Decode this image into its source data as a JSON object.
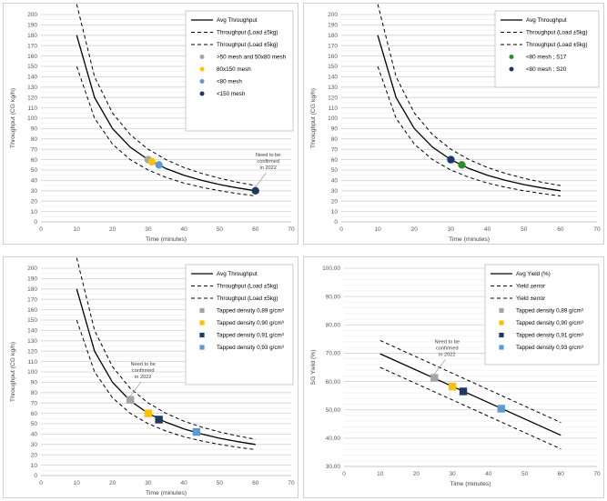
{
  "chart_data": [
    {
      "type": "line",
      "xlabel": "Time (minutes)",
      "ylabel": "Throughput (CG kg/h)",
      "xlim": [
        0,
        70
      ],
      "ylim": [
        0,
        200
      ],
      "xticks": [
        "0",
        "10",
        "20",
        "30",
        "40",
        "50",
        "60",
        "70"
      ],
      "yticks": [
        "0",
        "10",
        "20",
        "30",
        "40",
        "50",
        "60",
        "70",
        "80",
        "90",
        "100",
        "110",
        "120",
        "130",
        "140",
        "150",
        "160",
        "170",
        "180",
        "190",
        "200"
      ],
      "grid": true,
      "legend_position": "top-right",
      "curves": [
        {
          "name": "Avg Throughput",
          "style": "solid",
          "x": [
            10,
            15,
            20,
            25,
            30,
            35,
            40,
            45,
            50,
            55,
            60
          ],
          "y": [
            180,
            120,
            90,
            72,
            60,
            51.4,
            45,
            40,
            36,
            32.7,
            30
          ]
        },
        {
          "name": "Throughput (Load ±5kg)",
          "style": "dashed",
          "x": [
            10,
            15,
            20,
            25,
            30,
            35,
            40,
            45,
            50,
            55,
            60
          ],
          "y": [
            210,
            140,
            105,
            84,
            70,
            60,
            52.5,
            46.7,
            42,
            38.2,
            35
          ]
        },
        {
          "name": "Throughput (Load ±5kg)",
          "style": "dashed",
          "x": [
            10,
            15,
            20,
            25,
            30,
            35,
            40,
            45,
            50,
            55,
            60
          ],
          "y": [
            150,
            100,
            75,
            60,
            50,
            42.9,
            37.5,
            33.3,
            30,
            27.3,
            25
          ]
        }
      ],
      "points": [
        {
          "name": ">50 mesh and 50x80 mesh",
          "marker": "circle",
          "color": "#a5a5a5",
          "x": 30,
          "y": 60
        },
        {
          "name": "80x150 mesh",
          "marker": "circle",
          "color": "#ffc000",
          "x": 31,
          "y": 58
        },
        {
          "name": "<80 mesh",
          "marker": "circle",
          "color": "#5b9bd5",
          "x": 33,
          "y": 55
        },
        {
          "name": "<150 mesh",
          "marker": "circle",
          "color": "#1f3864",
          "x": 60,
          "y": 30
        }
      ],
      "annotation": {
        "text": [
          "Need to be",
          "confirmed",
          "in 2022"
        ],
        "x": 60,
        "y": 30
      }
    },
    {
      "type": "line",
      "xlabel": "Time (minutes)",
      "ylabel": "Throughput (CG kg/h)",
      "xlim": [
        0,
        70
      ],
      "ylim": [
        0,
        200
      ],
      "xticks": [
        "0",
        "10",
        "20",
        "30",
        "40",
        "50",
        "60",
        "70"
      ],
      "yticks": [
        "0",
        "10",
        "20",
        "30",
        "40",
        "50",
        "60",
        "70",
        "80",
        "90",
        "100",
        "110",
        "120",
        "130",
        "140",
        "150",
        "160",
        "170",
        "180",
        "190",
        "200"
      ],
      "grid": true,
      "legend_position": "top-right",
      "curves": [
        {
          "name": "Avg Throughput",
          "style": "solid",
          "x": [
            10,
            15,
            20,
            25,
            30,
            35,
            40,
            45,
            50,
            55,
            60
          ],
          "y": [
            180,
            120,
            90,
            72,
            60,
            51.4,
            45,
            40,
            36,
            32.7,
            30
          ]
        },
        {
          "name": "Throughput (Load ±5kg)",
          "style": "dashed",
          "x": [
            10,
            15,
            20,
            25,
            30,
            35,
            40,
            45,
            50,
            55,
            60
          ],
          "y": [
            210,
            140,
            105,
            84,
            70,
            60,
            52.5,
            46.7,
            42,
            38.2,
            35
          ]
        },
        {
          "name": "Throughput (Load ±5kg)",
          "style": "dashed",
          "x": [
            10,
            15,
            20,
            25,
            30,
            35,
            40,
            45,
            50,
            55,
            60
          ],
          "y": [
            150,
            100,
            75,
            60,
            50,
            42.9,
            37.5,
            33.3,
            30,
            27.3,
            25
          ]
        }
      ],
      "points": [
        {
          "name": "<80 mesh ; S17",
          "marker": "circle",
          "color": "#2e8b2e",
          "x": 33,
          "y": 55
        },
        {
          "name": "<80 mesh ; S20",
          "marker": "circle",
          "color": "#1f3864",
          "x": 30,
          "y": 60
        }
      ]
    },
    {
      "type": "line",
      "xlabel": "Time (minutes)",
      "ylabel": "Throughput (CG kg/h)",
      "xlim": [
        0,
        70
      ],
      "ylim": [
        0,
        200
      ],
      "xticks": [
        "0",
        "10",
        "20",
        "30",
        "40",
        "50",
        "60",
        "70"
      ],
      "yticks": [
        "0",
        "10",
        "20",
        "30",
        "40",
        "50",
        "60",
        "70",
        "80",
        "90",
        "100",
        "110",
        "120",
        "130",
        "140",
        "150",
        "160",
        "170",
        "180",
        "190",
        "200"
      ],
      "grid": true,
      "legend_position": "top-right",
      "curves": [
        {
          "name": "Avg Throughput",
          "style": "solid",
          "x": [
            10,
            15,
            20,
            25,
            30,
            35,
            40,
            45,
            50,
            55,
            60
          ],
          "y": [
            180,
            120,
            90,
            72,
            60,
            51.4,
            45,
            40,
            36,
            32.7,
            30
          ]
        },
        {
          "name": "Throughput (Load ±5kg)",
          "style": "dashed",
          "x": [
            10,
            15,
            20,
            25,
            30,
            35,
            40,
            45,
            50,
            55,
            60
          ],
          "y": [
            210,
            140,
            105,
            84,
            70,
            60,
            52.5,
            46.7,
            42,
            38.2,
            35
          ]
        },
        {
          "name": "Throughput (Load ±5kg)",
          "style": "dashed",
          "x": [
            10,
            15,
            20,
            25,
            30,
            35,
            40,
            45,
            50,
            55,
            60
          ],
          "y": [
            150,
            100,
            75,
            60,
            50,
            42.9,
            37.5,
            33.3,
            30,
            27.3,
            25
          ]
        }
      ],
      "points": [
        {
          "name": "Tapped density 0,89 g/cm³",
          "marker": "square",
          "color": "#a5a5a5",
          "x": 25,
          "y": 73
        },
        {
          "name": "Tapped density 0,90 g/cm³",
          "marker": "square",
          "color": "#ffc000",
          "x": 30,
          "y": 60
        },
        {
          "name": "Tapped density 0,91 g/cm³",
          "marker": "square",
          "color": "#203864",
          "x": 33,
          "y": 54
        },
        {
          "name": "Tapped density 0,93 g/cm³",
          "marker": "square",
          "color": "#5b9bd5",
          "x": 43.5,
          "y": 42
        }
      ],
      "annotation": {
        "text": [
          "Need to be",
          "confirmed",
          "in 2022"
        ],
        "x": 25,
        "y": 73
      }
    },
    {
      "type": "line",
      "xlabel": "Time (minutes)",
      "ylabel": "SG Yield (%)",
      "xlim": [
        0,
        70
      ],
      "ylim": [
        30,
        100
      ],
      "xticks": [
        "0",
        "10",
        "20",
        "30",
        "40",
        "50",
        "60",
        "70"
      ],
      "yticks": [
        "30,00",
        "40,00",
        "50,00",
        "60,00",
        "70,00",
        "80,00",
        "90,00",
        "100,00"
      ],
      "grid": true,
      "legend_position": "top-right",
      "curves": [
        {
          "name": "Avg Yield (%)",
          "style": "solid",
          "x": [
            10,
            60
          ],
          "y": [
            69.8,
            41
          ]
        },
        {
          "name": "Yield ±error",
          "style": "dashed",
          "x": [
            10,
            60
          ],
          "y": [
            74.5,
            45.5
          ]
        },
        {
          "name": "Yield ±error",
          "style": "dashed",
          "x": [
            10,
            60
          ],
          "y": [
            65,
            36.2
          ]
        }
      ],
      "points": [
        {
          "name": "Tapped density 0,89 g/cm³",
          "marker": "square",
          "color": "#a5a5a5",
          "x": 25,
          "y": 61.3
        },
        {
          "name": "Tapped density 0,90 g/cm³",
          "marker": "square",
          "color": "#ffc000",
          "x": 30,
          "y": 58.2
        },
        {
          "name": "Tapped density 0,91 g/cm³",
          "marker": "square",
          "color": "#203864",
          "x": 33,
          "y": 56.5
        },
        {
          "name": "Tapped density 0,93 g/cm³",
          "marker": "square",
          "color": "#5b9bd5",
          "x": 43.5,
          "y": 50.4
        }
      ],
      "annotation": {
        "text": [
          "Need to be",
          "confirmed",
          "in 2022"
        ],
        "x": 25,
        "y": 61.3
      }
    }
  ]
}
